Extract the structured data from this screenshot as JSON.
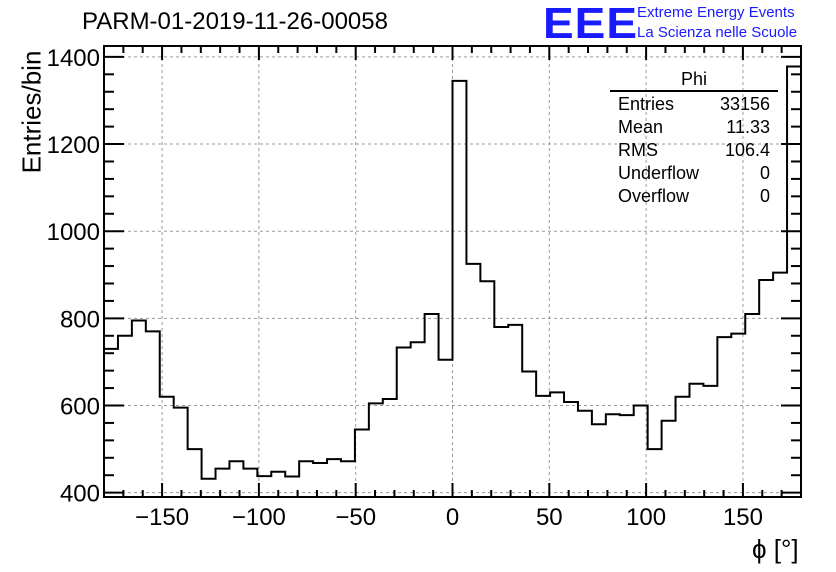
{
  "header": {
    "title": "PARM-01-2019-11-26-00058",
    "logo_text": "EEE",
    "logo_line1": "Extreme Energy Events",
    "logo_line2": "La Scienza nelle Scuole"
  },
  "stats_box": {
    "title": "Phi",
    "rows": [
      {
        "label": "Entries",
        "value": "33156"
      },
      {
        "label": "Mean",
        "value": "11.33"
      },
      {
        "label": "RMS",
        "value": "106.4"
      },
      {
        "label": "Underflow",
        "value": "0"
      },
      {
        "label": "Overflow",
        "value": "0"
      }
    ]
  },
  "chart_data": {
    "type": "histogram",
    "title": "PARM-01-2019-11-26-00058",
    "xlabel": "ϕ [°]",
    "ylabel": "Entries/bin",
    "xlim": [
      -180,
      180
    ],
    "ylim": [
      390,
      1425
    ],
    "bin_width": 7.2,
    "x_ticks": [
      -150,
      -100,
      -50,
      0,
      50,
      100,
      150
    ],
    "x_tick_labels": [
      "−150",
      "−100",
      "−50",
      "0",
      "50",
      "100",
      "150"
    ],
    "y_ticks": [
      400,
      600,
      800,
      1000,
      1200,
      1400
    ],
    "y_tick_labels": [
      "400",
      "600",
      "800",
      "1000",
      "1200",
      "1400"
    ],
    "grid": true,
    "bin_edges_start": -180,
    "values": [
      730,
      760,
      795,
      770,
      620,
      595,
      500,
      432,
      455,
      472,
      455,
      438,
      448,
      437,
      472,
      468,
      477,
      472,
      545,
      605,
      615,
      733,
      745,
      810,
      705,
      1345,
      925,
      885,
      780,
      785,
      678,
      622,
      630,
      608,
      588,
      557,
      580,
      578,
      600,
      500,
      565,
      620,
      650,
      645,
      757,
      765,
      810,
      888,
      905,
      1378
    ]
  }
}
